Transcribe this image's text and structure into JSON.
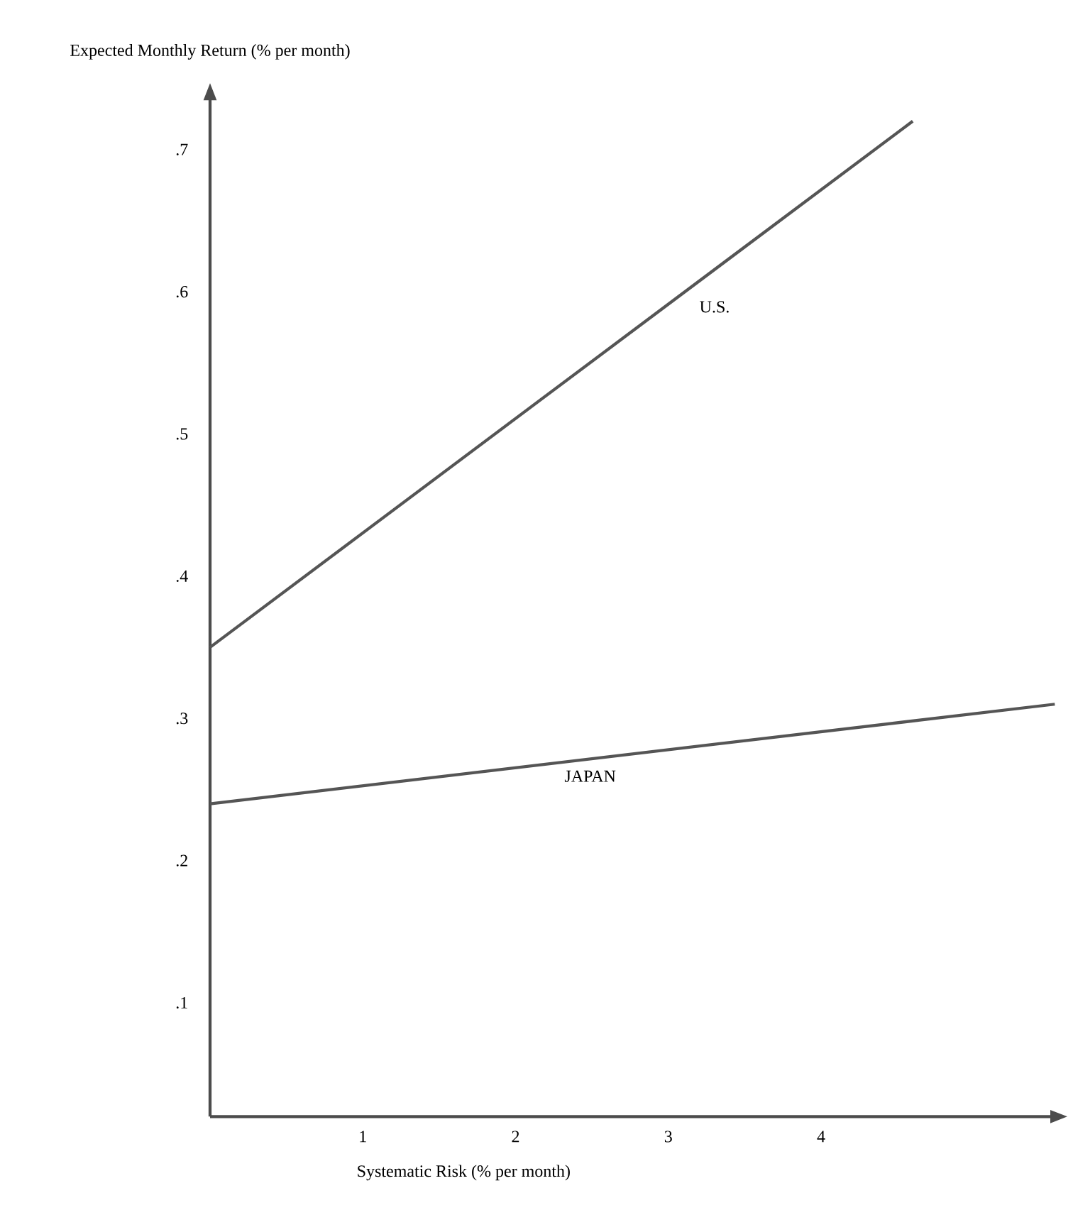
{
  "chart_data": {
    "type": "line",
    "xlabel": "Systematic Risk (% per month)",
    "ylabel": "Expected Monthly Return (% per month)",
    "xlim": [
      0,
      5.55
    ],
    "ylim": [
      0.02,
      0.74
    ],
    "xticks": [
      1,
      2,
      3,
      4
    ],
    "yticks": [
      {
        "value": 0.1,
        "label": ".1"
      },
      {
        "value": 0.2,
        "label": ".2"
      },
      {
        "value": 0.3,
        "label": ".3"
      },
      {
        "value": 0.4,
        "label": ".4"
      },
      {
        "value": 0.5,
        "label": ".5"
      },
      {
        "value": 0.6,
        "label": ".6"
      },
      {
        "value": 0.7,
        "label": ".7"
      }
    ],
    "grid": false,
    "legend": false,
    "marker": "none",
    "line_style": "solid",
    "series": [
      {
        "name": "U.S.",
        "color": "#555555",
        "x": [
          0,
          4.6
        ],
        "values": [
          0.35,
          0.72
        ]
      },
      {
        "name": "JAPAN",
        "color": "#555555",
        "x": [
          0,
          5.53
        ],
        "values": [
          0.24,
          0.31
        ]
      }
    ]
  }
}
